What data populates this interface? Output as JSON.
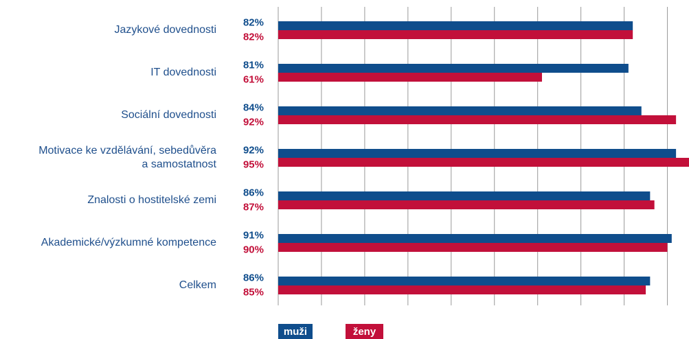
{
  "chart_data": {
    "type": "hbar",
    "categories": [
      "Jazykové dovednosti",
      "IT dovednosti",
      "Sociální dovednosti",
      "Motivace ke vzdělávání, sebedůvěra\na samostatnost",
      "Znalosti o hostitelské zemi",
      "Akademické/výzkumné kompetence",
      "Celkem"
    ],
    "series": [
      {
        "name": "muži",
        "color": "#0f4d8c",
        "values": [
          82,
          81,
          84,
          92,
          86,
          91,
          86
        ],
        "value_labels": [
          "82%",
          "81%",
          "84%",
          "92%",
          "86%",
          "91%",
          "86%"
        ]
      },
      {
        "name": "ženy",
        "color": "#c2103a",
        "values": [
          82,
          61,
          92,
          95,
          87,
          90,
          85
        ],
        "value_labels": [
          "82%",
          "61%",
          "92%",
          "95%",
          "87%",
          "90%",
          "85%"
        ]
      }
    ],
    "xlim": [
      0,
      95
    ],
    "xticks": [
      0,
      10,
      20,
      30,
      40,
      50,
      60,
      70,
      80,
      90
    ],
    "grid": true
  }
}
